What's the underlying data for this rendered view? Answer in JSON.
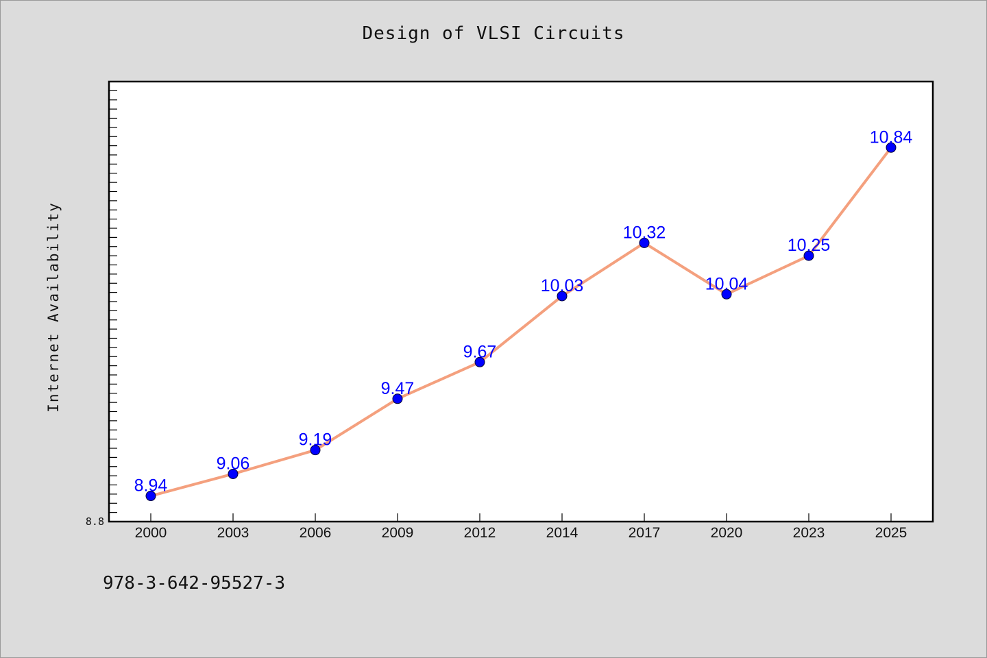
{
  "chart_data": {
    "type": "line",
    "title": "Design of VLSI Circuits",
    "xlabel": "",
    "ylabel": "Internet Availability",
    "categories": [
      "2000",
      "2003",
      "2006",
      "2009",
      "2012",
      "2014",
      "2017",
      "2020",
      "2023",
      "2025"
    ],
    "series": [
      {
        "values": [
          8.94,
          9.06,
          9.19,
          9.47,
          9.67,
          10.03,
          10.32,
          10.04,
          10.25,
          10.84
        ],
        "labels": [
          "8.94",
          "9.06",
          "9.19",
          "9.47",
          "9.67",
          "10.03",
          "10.32",
          "10.04",
          "10.25",
          "10.84"
        ]
      }
    ],
    "ylim": [
      8.8,
      11.2
    ],
    "yticklabels": [
      "8.8"
    ],
    "grid": false,
    "legend": "none",
    "colors": {
      "line": "#f4a07e",
      "marker": "#0000ff",
      "data_label": "#0000ff",
      "plot_background": "#ffffff",
      "figure_background": "#dcdcdc"
    }
  },
  "footer": {
    "isbn": "978-3-642-95527-3"
  }
}
